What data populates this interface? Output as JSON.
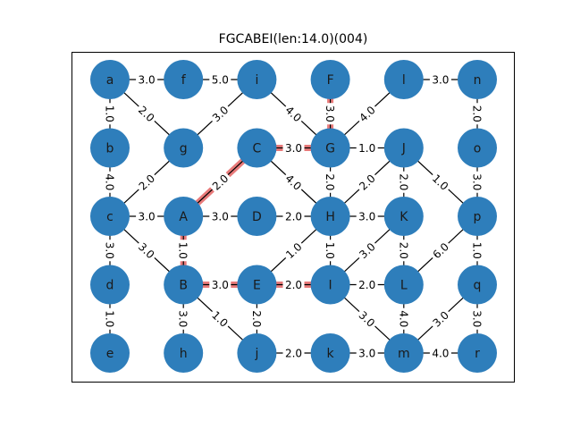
{
  "title": "FGCABEI(len:14.0)(004)",
  "colors": {
    "node": "#2e7ebb",
    "edge": "#000000",
    "path_highlight": "#e87a7a",
    "frame": "#000000",
    "background": "#ffffff"
  },
  "nodes": [
    {
      "id": "a",
      "col": 0,
      "row": 0
    },
    {
      "id": "f",
      "col": 1,
      "row": 0
    },
    {
      "id": "i",
      "col": 2,
      "row": 0
    },
    {
      "id": "F",
      "col": 3,
      "row": 0
    },
    {
      "id": "l",
      "col": 4,
      "row": 0
    },
    {
      "id": "n",
      "col": 5,
      "row": 0
    },
    {
      "id": "b",
      "col": 0,
      "row": 1
    },
    {
      "id": "g",
      "col": 1,
      "row": 1
    },
    {
      "id": "C",
      "col": 2,
      "row": 1
    },
    {
      "id": "G",
      "col": 3,
      "row": 1
    },
    {
      "id": "J",
      "col": 4,
      "row": 1
    },
    {
      "id": "o",
      "col": 5,
      "row": 1
    },
    {
      "id": "c",
      "col": 0,
      "row": 2
    },
    {
      "id": "A",
      "col": 1,
      "row": 2
    },
    {
      "id": "D",
      "col": 2,
      "row": 2
    },
    {
      "id": "H",
      "col": 3,
      "row": 2
    },
    {
      "id": "K",
      "col": 4,
      "row": 2
    },
    {
      "id": "p",
      "col": 5,
      "row": 2
    },
    {
      "id": "d",
      "col": 0,
      "row": 3
    },
    {
      "id": "B",
      "col": 1,
      "row": 3
    },
    {
      "id": "E",
      "col": 2,
      "row": 3
    },
    {
      "id": "I",
      "col": 3,
      "row": 3
    },
    {
      "id": "L",
      "col": 4,
      "row": 3
    },
    {
      "id": "q",
      "col": 5,
      "row": 3
    },
    {
      "id": "e",
      "col": 0,
      "row": 4
    },
    {
      "id": "h",
      "col": 1,
      "row": 4
    },
    {
      "id": "j",
      "col": 2,
      "row": 4
    },
    {
      "id": "k",
      "col": 3,
      "row": 4
    },
    {
      "id": "m",
      "col": 4,
      "row": 4
    },
    {
      "id": "r",
      "col": 5,
      "row": 4
    }
  ],
  "edges": [
    {
      "from": "a",
      "to": "f",
      "weight": "3.0"
    },
    {
      "from": "f",
      "to": "i",
      "weight": "5.0"
    },
    {
      "from": "l",
      "to": "n",
      "weight": "3.0"
    },
    {
      "from": "a",
      "to": "b",
      "weight": "1.0"
    },
    {
      "from": "a",
      "to": "g",
      "weight": "2.0"
    },
    {
      "from": "i",
      "to": "g",
      "weight": "3.0"
    },
    {
      "from": "i",
      "to": "G",
      "weight": "4.0"
    },
    {
      "from": "F",
      "to": "G",
      "weight": "3.0"
    },
    {
      "from": "l",
      "to": "G",
      "weight": "4.0"
    },
    {
      "from": "n",
      "to": "o",
      "weight": "2.0"
    },
    {
      "from": "C",
      "to": "G",
      "weight": "3.0"
    },
    {
      "from": "G",
      "to": "J",
      "weight": "1.0"
    },
    {
      "from": "b",
      "to": "c",
      "weight": "4.0"
    },
    {
      "from": "g",
      "to": "c",
      "weight": "2.0"
    },
    {
      "from": "C",
      "to": "A",
      "weight": "2.0"
    },
    {
      "from": "C",
      "to": "H",
      "weight": "4.0"
    },
    {
      "from": "G",
      "to": "H",
      "weight": "2.0"
    },
    {
      "from": "J",
      "to": "H",
      "weight": "2.0"
    },
    {
      "from": "J",
      "to": "K",
      "weight": "2.0"
    },
    {
      "from": "J",
      "to": "p",
      "weight": "1.0"
    },
    {
      "from": "o",
      "to": "p",
      "weight": "3.0"
    },
    {
      "from": "c",
      "to": "A",
      "weight": "3.0"
    },
    {
      "from": "A",
      "to": "D",
      "weight": "3.0"
    },
    {
      "from": "D",
      "to": "H",
      "weight": "2.0"
    },
    {
      "from": "H",
      "to": "K",
      "weight": "3.0"
    },
    {
      "from": "c",
      "to": "d",
      "weight": "3.0"
    },
    {
      "from": "c",
      "to": "B",
      "weight": "3.0"
    },
    {
      "from": "A",
      "to": "B",
      "weight": "1.0"
    },
    {
      "from": "H",
      "to": "E",
      "weight": "1.0"
    },
    {
      "from": "H",
      "to": "I",
      "weight": "1.0"
    },
    {
      "from": "K",
      "to": "I",
      "weight": "3.0"
    },
    {
      "from": "K",
      "to": "L",
      "weight": "2.0"
    },
    {
      "from": "p",
      "to": "L",
      "weight": "6.0"
    },
    {
      "from": "p",
      "to": "q",
      "weight": "1.0"
    },
    {
      "from": "B",
      "to": "E",
      "weight": "3.0"
    },
    {
      "from": "E",
      "to": "I",
      "weight": "2.0"
    },
    {
      "from": "I",
      "to": "L",
      "weight": "2.0"
    },
    {
      "from": "d",
      "to": "e",
      "weight": "1.0"
    },
    {
      "from": "B",
      "to": "h",
      "weight": "3.0"
    },
    {
      "from": "B",
      "to": "j",
      "weight": "1.0"
    },
    {
      "from": "E",
      "to": "j",
      "weight": "2.0"
    },
    {
      "from": "I",
      "to": "m",
      "weight": "3.0"
    },
    {
      "from": "L",
      "to": "m",
      "weight": "4.0"
    },
    {
      "from": "q",
      "to": "m",
      "weight": "3.0"
    },
    {
      "from": "q",
      "to": "r",
      "weight": "3.0"
    },
    {
      "from": "j",
      "to": "k",
      "weight": "2.0"
    },
    {
      "from": "k",
      "to": "m",
      "weight": "3.0"
    },
    {
      "from": "m",
      "to": "r",
      "weight": "4.0"
    }
  ],
  "path": [
    "F",
    "G",
    "C",
    "A",
    "B",
    "E",
    "I"
  ]
}
